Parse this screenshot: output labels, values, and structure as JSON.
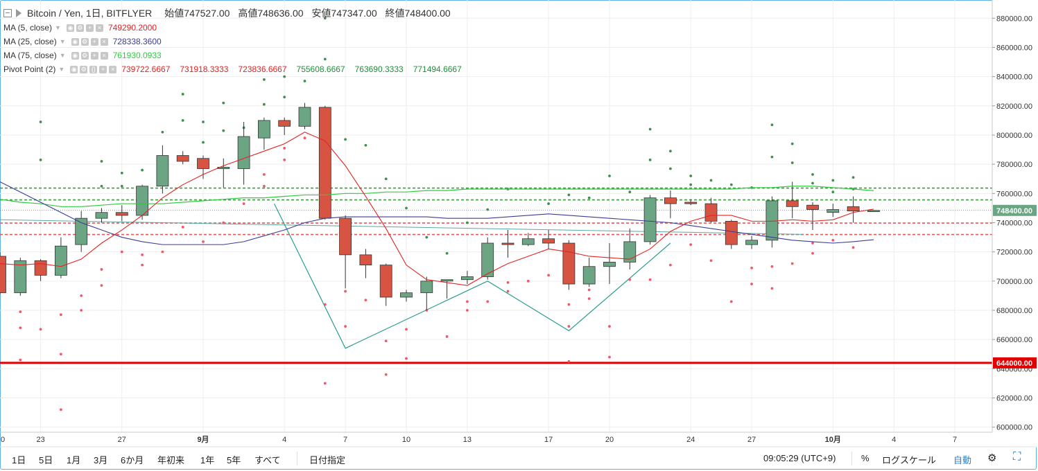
{
  "header": {
    "symbol": "Bitcoin / Yen, 1日, BITFLYER",
    "open": "始値747527.00",
    "high": "高値748636.00",
    "low": "安値747347.00",
    "close": "終値748400.00"
  },
  "legends": [
    {
      "name": "MA (5, close)",
      "values": [
        "749290.2000"
      ],
      "colors": [
        "#e52222"
      ]
    },
    {
      "name": "MA (25, close)",
      "values": [
        "728338.3600"
      ],
      "colors": [
        "#3b3b98"
      ]
    },
    {
      "name": "MA (75, close)",
      "values": [
        "761930.0933"
      ],
      "colors": [
        "#2ecc40"
      ]
    },
    {
      "name": "Pivot Point (2)",
      "values": [
        "739722.6667",
        "731918.3333",
        "723836.6667",
        "755608.6667",
        "763690.3333",
        "771494.6667"
      ],
      "colors": [
        "#e52222",
        "#e52222",
        "#e52222",
        "#1f8f3a",
        "#1f8f3a",
        "#1f8f3a"
      ]
    }
  ],
  "toolbar": {
    "ranges": [
      "1日",
      "5日",
      "1月",
      "3月",
      "6か月",
      "年初来",
      "1年",
      "5年",
      "すべて"
    ],
    "date_button": "日付指定",
    "time": "09:05:29 (UTC+9)",
    "percent": "%",
    "log": "ログスケール",
    "auto": "自動"
  },
  "chart_data": {
    "type": "candlestick",
    "y_range": [
      597000,
      892000
    ],
    "y_ticks": [
      600000,
      620000,
      640000,
      660000,
      680000,
      700000,
      720000,
      740000,
      760000,
      780000,
      800000,
      820000,
      840000,
      860000,
      880000
    ],
    "y_tick_labels": [
      "600000.00",
      "620000.00",
      "640000.00",
      "660000.00",
      "680000.00",
      "700000.00",
      "720000.00",
      "740000.00",
      "760000.00",
      "780000.00",
      "800000.00",
      "820000.00",
      "840000.00",
      "860000.00",
      "880000.00"
    ],
    "x_tick_labels": [
      {
        "i": 2,
        "label": "23"
      },
      {
        "i": 6,
        "label": "27"
      },
      {
        "i": 10,
        "label": "9月"
      },
      {
        "i": 14,
        "label": "4"
      },
      {
        "i": 17,
        "label": "7"
      },
      {
        "i": 20,
        "label": "10"
      },
      {
        "i": 23,
        "label": "13"
      },
      {
        "i": 27,
        "label": "17"
      },
      {
        "i": 30,
        "label": "20"
      },
      {
        "i": 34,
        "label": "24"
      },
      {
        "i": 37,
        "label": "27"
      },
      {
        "i": 41,
        "label": "10月"
      },
      {
        "i": 44,
        "label": "4"
      },
      {
        "i": 47,
        "label": "7"
      }
    ],
    "x_edge_label": "0",
    "candles": [
      [
        717000,
        720000,
        691000,
        692000
      ],
      [
        692000,
        716000,
        690000,
        714000
      ],
      [
        714000,
        715000,
        700000,
        704000
      ],
      [
        704000,
        730000,
        702000,
        724000
      ],
      [
        725000,
        748000,
        720000,
        743000
      ],
      [
        743000,
        750000,
        740000,
        747000
      ],
      [
        747000,
        752000,
        741000,
        745000
      ],
      [
        745000,
        766000,
        742000,
        765000
      ],
      [
        765000,
        793000,
        760000,
        786000
      ],
      [
        786000,
        789000,
        780000,
        782000
      ],
      [
        784000,
        786000,
        770000,
        777000
      ],
      [
        777000,
        784000,
        764000,
        778000
      ],
      [
        777000,
        809000,
        766000,
        799000
      ],
      [
        798000,
        812000,
        790000,
        810000
      ],
      [
        810000,
        812000,
        800000,
        806000
      ],
      [
        806000,
        822000,
        804000,
        819000
      ],
      [
        819000,
        820000,
        742000,
        743000
      ],
      [
        743000,
        745000,
        695000,
        718000
      ],
      [
        718000,
        722000,
        702000,
        711000
      ],
      [
        711000,
        712000,
        683000,
        689000
      ],
      [
        689000,
        694000,
        686000,
        692000
      ],
      [
        692000,
        703000,
        680000,
        700000
      ],
      [
        700000,
        701000,
        688000,
        701000
      ],
      [
        701000,
        707000,
        698000,
        703000
      ],
      [
        703000,
        730000,
        701000,
        726000
      ],
      [
        726000,
        735000,
        716000,
        725000
      ],
      [
        725000,
        733000,
        724000,
        729000
      ],
      [
        729000,
        735000,
        722000,
        726000
      ],
      [
        726000,
        728000,
        694000,
        698000
      ],
      [
        698000,
        716000,
        696000,
        710000
      ],
      [
        710000,
        726000,
        698000,
        713000
      ],
      [
        713000,
        736000,
        708000,
        727000
      ],
      [
        727000,
        759000,
        725000,
        757000
      ],
      [
        757000,
        762000,
        743000,
        753000
      ],
      [
        754000,
        756000,
        752000,
        753000
      ],
      [
        753000,
        757000,
        740000,
        741000
      ],
      [
        741000,
        742000,
        722000,
        725000
      ],
      [
        725000,
        731000,
        722000,
        728000
      ],
      [
        728000,
        758000,
        723000,
        755000
      ],
      [
        755000,
        768000,
        743000,
        751000
      ],
      [
        752000,
        754000,
        735000,
        749000
      ],
      [
        747000,
        753000,
        744000,
        749000
      ],
      [
        751000,
        758000,
        740000,
        748000
      ],
      [
        747527,
        748636,
        747347,
        748400
      ]
    ],
    "ma5": [
      [
        0,
        712000
      ],
      [
        1,
        711000
      ],
      [
        2,
        712000
      ],
      [
        3,
        710000
      ],
      [
        4,
        715000
      ],
      [
        5,
        726000
      ],
      [
        6,
        735000
      ],
      [
        7,
        745000
      ],
      [
        8,
        757000
      ],
      [
        9,
        766000
      ],
      [
        10,
        773000
      ],
      [
        11,
        779000
      ],
      [
        12,
        784000
      ],
      [
        13,
        789000
      ],
      [
        14,
        794000
      ],
      [
        15,
        802000
      ],
      [
        16,
        796000
      ],
      [
        17,
        779000
      ],
      [
        18,
        758000
      ],
      [
        19,
        736000
      ],
      [
        20,
        711000
      ],
      [
        21,
        701000
      ],
      [
        22,
        699000
      ],
      [
        23,
        697000
      ],
      [
        24,
        705000
      ],
      [
        25,
        712000
      ],
      [
        26,
        717000
      ],
      [
        27,
        722000
      ],
      [
        28,
        720000
      ],
      [
        29,
        717000
      ],
      [
        30,
        716000
      ],
      [
        31,
        715000
      ],
      [
        32,
        722000
      ],
      [
        33,
        734000
      ],
      [
        34,
        741000
      ],
      [
        35,
        745000
      ],
      [
        36,
        745000
      ],
      [
        37,
        741000
      ],
      [
        38,
        741000
      ],
      [
        39,
        742000
      ],
      [
        40,
        741000
      ],
      [
        41,
        742000
      ],
      [
        42,
        747000
      ],
      [
        43,
        749290
      ]
    ],
    "ma25": [
      [
        0,
        768000
      ],
      [
        1,
        761000
      ],
      [
        2,
        754000
      ],
      [
        3,
        747000
      ],
      [
        4,
        740000
      ],
      [
        5,
        735000
      ],
      [
        6,
        730000
      ],
      [
        7,
        727000
      ],
      [
        8,
        725000
      ],
      [
        9,
        725000
      ],
      [
        10,
        725000
      ],
      [
        11,
        725000
      ],
      [
        12,
        727000
      ],
      [
        13,
        731000
      ],
      [
        14,
        735000
      ],
      [
        15,
        740000
      ],
      [
        16,
        743000
      ],
      [
        17,
        744000
      ],
      [
        18,
        744000
      ],
      [
        19,
        744000
      ],
      [
        20,
        744000
      ],
      [
        21,
        744000
      ],
      [
        22,
        743000
      ],
      [
        23,
        743000
      ],
      [
        24,
        743000
      ],
      [
        25,
        744000
      ],
      [
        26,
        745000
      ],
      [
        27,
        746000
      ],
      [
        28,
        745000
      ],
      [
        29,
        744000
      ],
      [
        30,
        743000
      ],
      [
        31,
        742000
      ],
      [
        32,
        741000
      ],
      [
        33,
        740000
      ],
      [
        34,
        738000
      ],
      [
        35,
        736000
      ],
      [
        36,
        734000
      ],
      [
        37,
        732000
      ],
      [
        38,
        730000
      ],
      [
        39,
        728000
      ],
      [
        40,
        727000
      ],
      [
        41,
        726000
      ],
      [
        42,
        727000
      ],
      [
        43,
        728338
      ]
    ],
    "ma75": [
      [
        0,
        756000
      ],
      [
        1,
        754000
      ],
      [
        2,
        753000
      ],
      [
        3,
        751000
      ],
      [
        4,
        751000
      ],
      [
        5,
        752000
      ],
      [
        6,
        753000
      ],
      [
        7,
        753000
      ],
      [
        8,
        753000
      ],
      [
        9,
        754000
      ],
      [
        10,
        755000
      ],
      [
        11,
        756000
      ],
      [
        12,
        757000
      ],
      [
        13,
        757000
      ],
      [
        14,
        758000
      ],
      [
        15,
        759000
      ],
      [
        16,
        759000
      ],
      [
        17,
        760000
      ],
      [
        18,
        760000
      ],
      [
        19,
        761000
      ],
      [
        20,
        761000
      ],
      [
        21,
        762000
      ],
      [
        22,
        762000
      ],
      [
        23,
        763000
      ],
      [
        24,
        763000
      ],
      [
        25,
        763000
      ],
      [
        26,
        763000
      ],
      [
        27,
        763000
      ],
      [
        28,
        763000
      ],
      [
        29,
        763000
      ],
      [
        30,
        763000
      ],
      [
        31,
        763000
      ],
      [
        32,
        763000
      ],
      [
        33,
        763000
      ],
      [
        34,
        763000
      ],
      [
        35,
        763000
      ],
      [
        36,
        763000
      ],
      [
        37,
        764000
      ],
      [
        38,
        764000
      ],
      [
        39,
        765000
      ],
      [
        40,
        765000
      ],
      [
        41,
        764000
      ],
      [
        42,
        763000
      ],
      [
        43,
        761930
      ]
    ],
    "teal_line": [
      [
        13.5,
        753000
      ],
      [
        17,
        654000
      ],
      [
        24,
        700000
      ],
      [
        28,
        666000
      ],
      [
        33,
        726000
      ]
    ],
    "flat_line_a": [
      [
        0,
        742000
      ],
      [
        39.5,
        732000
      ]
    ],
    "pivot_levels": [
      {
        "value": 763690,
        "color": "#3a9b3a",
        "style": "dash"
      },
      {
        "value": 755608,
        "color": "#3a9b3a",
        "style": "dash"
      },
      {
        "value": 739722,
        "color": "#e05a5a",
        "style": "dash"
      },
      {
        "value": 731918,
        "color": "#e05a5a",
        "style": "dash"
      }
    ],
    "last_price_line": 748400,
    "last_price_label": "748400.00",
    "red_level": 644000,
    "red_level_label": "644000.00",
    "pivot_dots_green": [
      [
        2,
        783000
      ],
      [
        2,
        809000
      ],
      [
        5,
        765000
      ],
      [
        5,
        782000
      ],
      [
        6,
        774000
      ],
      [
        6,
        765000
      ],
      [
        7,
        776000
      ],
      [
        8,
        802000
      ],
      [
        9,
        828000
      ],
      [
        9,
        810000
      ],
      [
        10,
        809000
      ],
      [
        10,
        795000
      ],
      [
        11,
        822000
      ],
      [
        11,
        803000
      ],
      [
        12,
        805000
      ],
      [
        13,
        838000
      ],
      [
        13,
        821000
      ],
      [
        14,
        840000
      ],
      [
        14,
        826000
      ],
      [
        15,
        837000
      ],
      [
        16,
        880000
      ],
      [
        16,
        852000
      ],
      [
        17,
        797000
      ],
      [
        18,
        793000
      ],
      [
        19,
        770000
      ],
      [
        20,
        750000
      ],
      [
        21,
        730000
      ],
      [
        22,
        719000
      ],
      [
        23,
        740000
      ],
      [
        24,
        749000
      ],
      [
        25,
        763000
      ],
      [
        27,
        753000
      ],
      [
        28,
        759000
      ],
      [
        29,
        757000
      ],
      [
        30,
        772000
      ],
      [
        31,
        761000
      ],
      [
        32,
        804000
      ],
      [
        32,
        783000
      ],
      [
        33,
        789000
      ],
      [
        33,
        777000
      ],
      [
        34,
        772000
      ],
      [
        34,
        766000
      ],
      [
        35,
        769000
      ],
      [
        36,
        766000
      ],
      [
        37,
        764000
      ],
      [
        38,
        807000
      ],
      [
        38,
        785000
      ],
      [
        39,
        794000
      ],
      [
        39,
        781000
      ],
      [
        40,
        773000
      ],
      [
        40,
        767000
      ],
      [
        41,
        769000
      ],
      [
        41,
        761000
      ],
      [
        42,
        771000
      ],
      [
        42,
        763000
      ]
    ],
    "pivot_dots_red": [
      [
        1,
        646000
      ],
      [
        1,
        668000
      ],
      [
        1,
        679000
      ],
      [
        2,
        667000
      ],
      [
        3,
        612000
      ],
      [
        3,
        650000
      ],
      [
        3,
        677000
      ],
      [
        4,
        680000
      ],
      [
        4,
        690000
      ],
      [
        5,
        697000
      ],
      [
        5,
        708000
      ],
      [
        6,
        720000
      ],
      [
        7,
        711000
      ],
      [
        7,
        718000
      ],
      [
        8,
        720000
      ],
      [
        9,
        737000
      ],
      [
        10,
        727000
      ],
      [
        11,
        740000
      ],
      [
        12,
        753000
      ],
      [
        13,
        765000
      ],
      [
        13,
        773000
      ],
      [
        14,
        783000
      ],
      [
        14,
        791000
      ],
      [
        15,
        798000
      ],
      [
        16,
        630000
      ],
      [
        16,
        684000
      ],
      [
        17,
        669000
      ],
      [
        17,
        693000
      ],
      [
        18,
        687000
      ],
      [
        19,
        636000
      ],
      [
        19,
        659000
      ],
      [
        20,
        647000
      ],
      [
        20,
        667000
      ],
      [
        21,
        680000
      ],
      [
        22,
        662000
      ],
      [
        23,
        680000
      ],
      [
        23,
        686000
      ],
      [
        24,
        686000
      ],
      [
        25,
        693000
      ],
      [
        25,
        699000
      ],
      [
        26,
        700000
      ],
      [
        27,
        704000
      ],
      [
        28,
        645000
      ],
      [
        28,
        669000
      ],
      [
        28,
        684000
      ],
      [
        29,
        688000
      ],
      [
        29,
        694000
      ],
      [
        30,
        648000
      ],
      [
        30,
        669000
      ],
      [
        31,
        701000
      ],
      [
        31,
        714000
      ],
      [
        32,
        701000
      ],
      [
        33,
        711000
      ],
      [
        34,
        725000
      ],
      [
        35,
        714000
      ],
      [
        36,
        686000
      ],
      [
        37,
        698000
      ],
      [
        37,
        709000
      ],
      [
        38,
        695000
      ],
      [
        38,
        710000
      ],
      [
        39,
        712000
      ],
      [
        40,
        719000
      ],
      [
        40,
        726000
      ],
      [
        41,
        728000
      ],
      [
        42,
        723000
      ]
    ]
  }
}
